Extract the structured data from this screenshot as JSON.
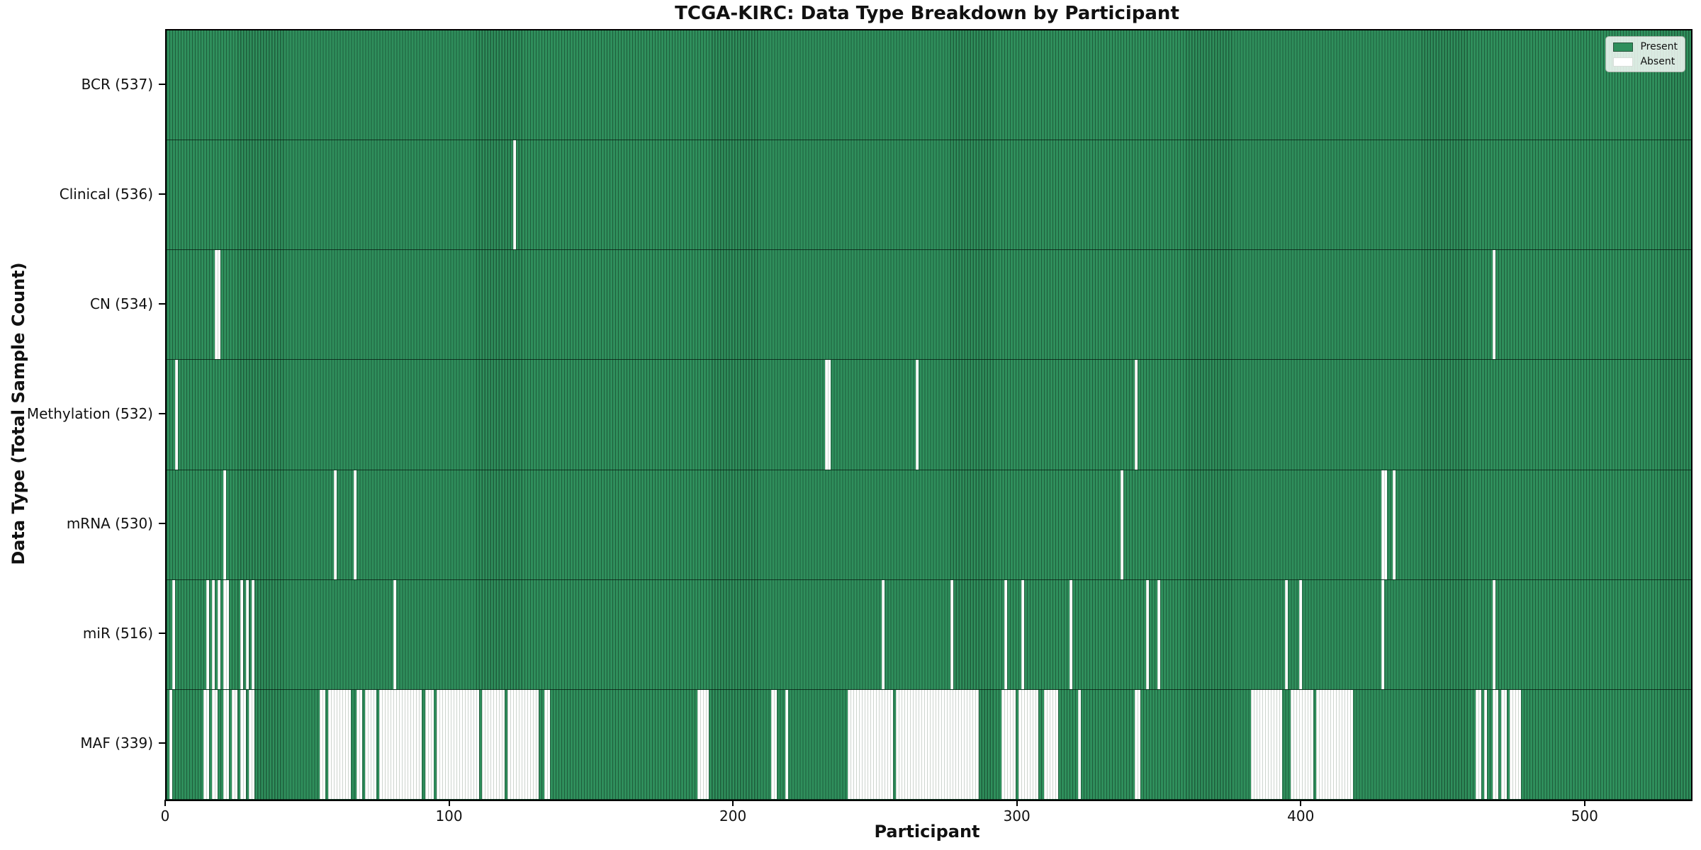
{
  "chart": {
    "title": "TCGA-KIRC: Data Type Breakdown by Participant",
    "xlabel": "Participant",
    "ylabel": "Data Type (Total Sample Count)",
    "legend": [
      {
        "label": "Present",
        "color": "#2f8f5c"
      },
      {
        "label": "Absent",
        "color": "#ffffff"
      }
    ]
  },
  "chart_data": {
    "type": "heatmap",
    "title": "TCGA-KIRC: Data Type Breakdown by Participant",
    "xlabel": "Participant",
    "ylabel": "Data Type (Total Sample Count)",
    "x_range": [
      0,
      537
    ],
    "x_ticks": [
      0,
      100,
      200,
      300,
      400,
      500
    ],
    "n_participants": 537,
    "grid": false,
    "legend_position": "upper right",
    "legend": [
      "Present",
      "Absent"
    ],
    "colors": {
      "present_fill": "#2f8f5c",
      "present_edge": "#1e5d3b",
      "absent_fill": "#ffffff",
      "absent_edge": "#cdd4ce",
      "spine": "#000000"
    },
    "rows": [
      {
        "name": "bcr",
        "label": "BCR (537)",
        "data_type": "BCR",
        "present_count": 537,
        "absent_count": 0,
        "absent_runs": []
      },
      {
        "name": "clinical",
        "label": "Clinical (536)",
        "data_type": "Clinical",
        "present_count": 536,
        "absent_count": 1,
        "absent_runs": [
          [
            122,
            122
          ]
        ]
      },
      {
        "name": "cn",
        "label": "CN (534)",
        "data_type": "CN",
        "present_count": 534,
        "absent_count": 3,
        "absent_runs": [
          [
            17,
            18
          ],
          [
            467,
            467
          ]
        ]
      },
      {
        "name": "methylation",
        "label": "Methylation (532)",
        "data_type": "Methylation",
        "present_count": 532,
        "absent_count": 5,
        "absent_runs": [
          [
            3,
            3
          ],
          [
            232,
            233
          ],
          [
            264,
            264
          ],
          [
            341,
            341
          ]
        ]
      },
      {
        "name": "mrna",
        "label": "mRNA (530)",
        "data_type": "mRNA",
        "present_count": 530,
        "absent_count": 7,
        "absent_runs": [
          [
            20,
            20
          ],
          [
            59,
            59
          ],
          [
            66,
            66
          ],
          [
            336,
            336
          ],
          [
            428,
            429
          ],
          [
            432,
            432
          ]
        ]
      },
      {
        "name": "mir",
        "label": "miR (516)",
        "data_type": "miR",
        "present_count": 516,
        "absent_count": 21,
        "absent_runs": [
          [
            2,
            2
          ],
          [
            14,
            14
          ],
          [
            16,
            16
          ],
          [
            18,
            18
          ],
          [
            20,
            21
          ],
          [
            26,
            26
          ],
          [
            28,
            28
          ],
          [
            30,
            30
          ],
          [
            80,
            80
          ],
          [
            252,
            252
          ],
          [
            276,
            276
          ],
          [
            295,
            295
          ],
          [
            301,
            301
          ],
          [
            318,
            318
          ],
          [
            345,
            345
          ],
          [
            349,
            349
          ],
          [
            394,
            394
          ],
          [
            399,
            399
          ],
          [
            428,
            428
          ],
          [
            467,
            467
          ]
        ]
      },
      {
        "name": "maf",
        "label": "MAF (339)",
        "data_type": "MAF",
        "present_count": 339,
        "absent_count": 198,
        "absent_runs": [
          [
            1,
            1
          ],
          [
            13,
            14
          ],
          [
            16,
            17
          ],
          [
            20,
            21
          ],
          [
            23,
            24
          ],
          [
            26,
            27
          ],
          [
            29,
            30
          ],
          [
            54,
            55
          ],
          [
            57,
            64
          ],
          [
            67,
            68
          ],
          [
            70,
            73
          ],
          [
            75,
            89
          ],
          [
            91,
            93
          ],
          [
            95,
            109
          ],
          [
            111,
            118
          ],
          [
            120,
            130
          ],
          [
            133,
            134
          ],
          [
            187,
            190
          ],
          [
            213,
            214
          ],
          [
            218,
            218
          ],
          [
            240,
            255
          ],
          [
            257,
            285
          ],
          [
            294,
            298
          ],
          [
            300,
            306
          ],
          [
            309,
            313
          ],
          [
            321,
            321
          ],
          [
            341,
            342
          ],
          [
            382,
            392
          ],
          [
            396,
            403
          ],
          [
            405,
            417
          ],
          [
            461,
            462
          ],
          [
            464,
            464
          ],
          [
            467,
            468
          ],
          [
            470,
            471
          ],
          [
            473,
            476
          ]
        ]
      }
    ]
  }
}
